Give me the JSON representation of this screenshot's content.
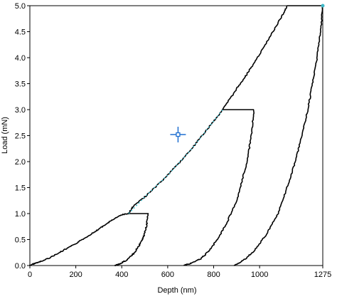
{
  "chart_data": {
    "type": "line",
    "xlabel": "Depth (nm)",
    "ylabel": "Load (mN)",
    "xlim": [
      0,
      1275
    ],
    "ylim": [
      0,
      5.0
    ],
    "grid": false,
    "xticks": [
      {
        "v": 0,
        "label": "0"
      },
      {
        "v": 200,
        "label": "200"
      },
      {
        "v": 400,
        "label": "400"
      },
      {
        "v": 600,
        "label": "600"
      },
      {
        "v": 800,
        "label": "800"
      },
      {
        "v": 1000,
        "label": "1000"
      },
      {
        "v": 1275,
        "label": "1275"
      }
    ],
    "yticks": [
      {
        "v": 0.0,
        "label": "0.0"
      },
      {
        "v": 0.5,
        "label": "0.5"
      },
      {
        "v": 1.0,
        "label": "1.0"
      },
      {
        "v": 1.5,
        "label": "1.5"
      },
      {
        "v": 2.0,
        "label": "2.0"
      },
      {
        "v": 2.5,
        "label": "2.5"
      },
      {
        "v": 3.0,
        "label": "3.0"
      },
      {
        "v": 3.5,
        "label": "3.5"
      },
      {
        "v": 4.0,
        "label": "4.0"
      },
      {
        "v": 4.5,
        "label": "4.5"
      },
      {
        "v": 5.0,
        "label": "5.0"
      }
    ],
    "series": [
      {
        "color": "#000000",
        "points": [
          [
            0,
            0
          ],
          [
            20,
            0.04
          ],
          [
            50,
            0.08
          ],
          [
            100,
            0.18
          ],
          [
            150,
            0.3
          ],
          [
            200,
            0.42
          ],
          [
            250,
            0.56
          ],
          [
            300,
            0.7
          ],
          [
            350,
            0.85
          ],
          [
            400,
            0.98
          ],
          [
            430,
            1.0
          ],
          [
            450,
            1.14
          ],
          [
            500,
            1.32
          ],
          [
            550,
            1.52
          ],
          [
            600,
            1.74
          ],
          [
            650,
            1.98
          ],
          [
            700,
            2.22
          ],
          [
            750,
            2.5
          ],
          [
            800,
            2.78
          ],
          [
            840,
            3.0
          ],
          [
            900,
            3.4
          ],
          [
            950,
            3.72
          ],
          [
            1000,
            4.06
          ],
          [
            1050,
            4.44
          ],
          [
            1100,
            4.82
          ],
          [
            1120,
            5.0
          ]
        ]
      },
      {
        "color": "#000000",
        "points": [
          [
            430,
            1.0
          ],
          [
            515,
            1.0
          ]
        ]
      },
      {
        "color": "#000000",
        "points": [
          [
            515,
            1.0
          ],
          [
            508,
            0.78
          ],
          [
            495,
            0.55
          ],
          [
            475,
            0.38
          ],
          [
            450,
            0.22
          ],
          [
            420,
            0.1
          ],
          [
            390,
            0.03
          ],
          [
            370,
            0
          ]
        ]
      },
      {
        "color": "#000000",
        "points": [
          [
            840,
            3.0
          ],
          [
            975,
            3.0
          ]
        ]
      },
      {
        "color": "#000000",
        "points": [
          [
            975,
            3.0
          ],
          [
            965,
            2.55
          ],
          [
            950,
            2.1
          ],
          [
            925,
            1.65
          ],
          [
            900,
            1.25
          ],
          [
            860,
            0.85
          ],
          [
            820,
            0.52
          ],
          [
            780,
            0.28
          ],
          [
            740,
            0.12
          ],
          [
            700,
            0.04
          ],
          [
            670,
            0
          ]
        ]
      },
      {
        "color": "#000000",
        "points": [
          [
            1120,
            5.0
          ],
          [
            1275,
            5.0
          ]
        ]
      },
      {
        "color": "#000000",
        "points": [
          [
            1275,
            5.0
          ],
          [
            1265,
            4.5
          ],
          [
            1250,
            4.0
          ],
          [
            1230,
            3.5
          ],
          [
            1210,
            3.0
          ],
          [
            1185,
            2.5
          ],
          [
            1155,
            2.0
          ],
          [
            1120,
            1.5
          ],
          [
            1080,
            1.0
          ],
          [
            1030,
            0.6
          ],
          [
            980,
            0.3
          ],
          [
            930,
            0.1
          ],
          [
            890,
            0
          ]
        ]
      }
    ],
    "fit_segment": {
      "color": "#3fb8c8",
      "points": [
        [
          430,
          1.0
        ],
        [
          500,
          1.32
        ],
        [
          600,
          1.74
        ],
        [
          700,
          2.22
        ],
        [
          800,
          2.78
        ],
        [
          840,
          3.0
        ]
      ]
    },
    "marker": {
      "x": 645,
      "y": 2.52,
      "color": "#1e6fd0"
    },
    "end_points": [
      {
        "x": 1275,
        "y": 5.0,
        "color": "#3fb8c8"
      }
    ]
  }
}
